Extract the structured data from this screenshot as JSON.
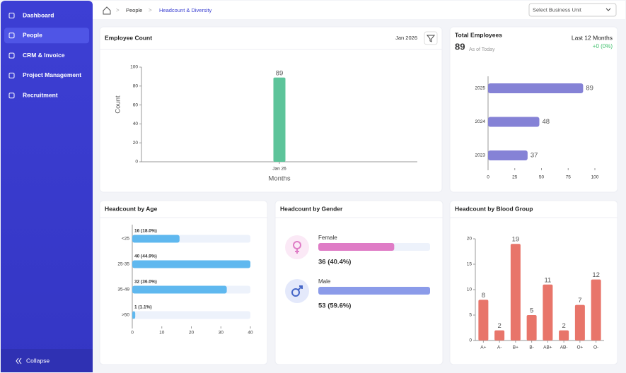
{
  "sidebar": {
    "items": [
      "Dashboard",
      "People",
      "CRM & Invoice",
      "Project Management",
      "Recruitment"
    ],
    "collapse": "Collapse"
  },
  "breadcrumb": [
    "People",
    "Headcount & Diversity"
  ],
  "business_unit_select": "Select Business Unit",
  "chart_data": [
    {
      "type": "bar",
      "title": "Employee Count",
      "filter_label": "Jan 2026",
      "categories": [
        "Jan 26"
      ],
      "values": [
        89
      ],
      "color": "#5dc49a",
      "ylim": [
        0,
        100
      ],
      "yticks": [
        0,
        20,
        40,
        60,
        80,
        100
      ],
      "y_label": "Count",
      "x_label": "Months"
    },
    {
      "type": "hbar",
      "title": "Total Employees",
      "total": 89,
      "total_note": "As of Today",
      "period": "Last 12 Months",
      "change": "+0 (0%)",
      "categories": [
        "2025",
        "2024",
        "2023"
      ],
      "values": [
        89,
        48,
        37
      ],
      "color": "#8582d6",
      "xlim": [
        0,
        100
      ],
      "xticks": [
        0,
        25,
        50,
        75,
        100
      ]
    },
    {
      "type": "hbar-track",
      "title": "Headcount by Age",
      "categories": [
        "<25",
        "25-35",
        "35-49",
        ">50"
      ],
      "values": [
        16,
        40,
        32,
        1
      ],
      "value_labels": [
        "16 (18.0%)",
        "40 (44.9%)",
        "32 (36.0%)",
        "1 (1.1%)"
      ],
      "color": "#5fb8ef",
      "xlim": [
        0,
        40
      ],
      "xticks": [
        0,
        10,
        20,
        30,
        40
      ]
    },
    {
      "type": "progress",
      "title": "Headcount by Gender",
      "categories": [
        "Female",
        "Male"
      ],
      "values": [
        36,
        53
      ],
      "value_labels": [
        "36 (40.4%)",
        "53 (59.6%)"
      ],
      "colors": [
        "#df7cc6",
        "#8b9be9"
      ],
      "xlim": [
        0,
        53
      ]
    },
    {
      "type": "bar",
      "title": "Headcount by Blood Group",
      "categories": [
        "A+",
        "A-",
        "B+",
        "B-",
        "AB+",
        "AB-",
        "O+",
        "O-"
      ],
      "values": [
        8,
        2,
        19,
        5,
        11,
        2,
        7,
        12
      ],
      "color": "#e8756a",
      "ylim": [
        0,
        20
      ],
      "yticks": [
        0,
        5,
        10,
        15,
        20
      ]
    }
  ]
}
